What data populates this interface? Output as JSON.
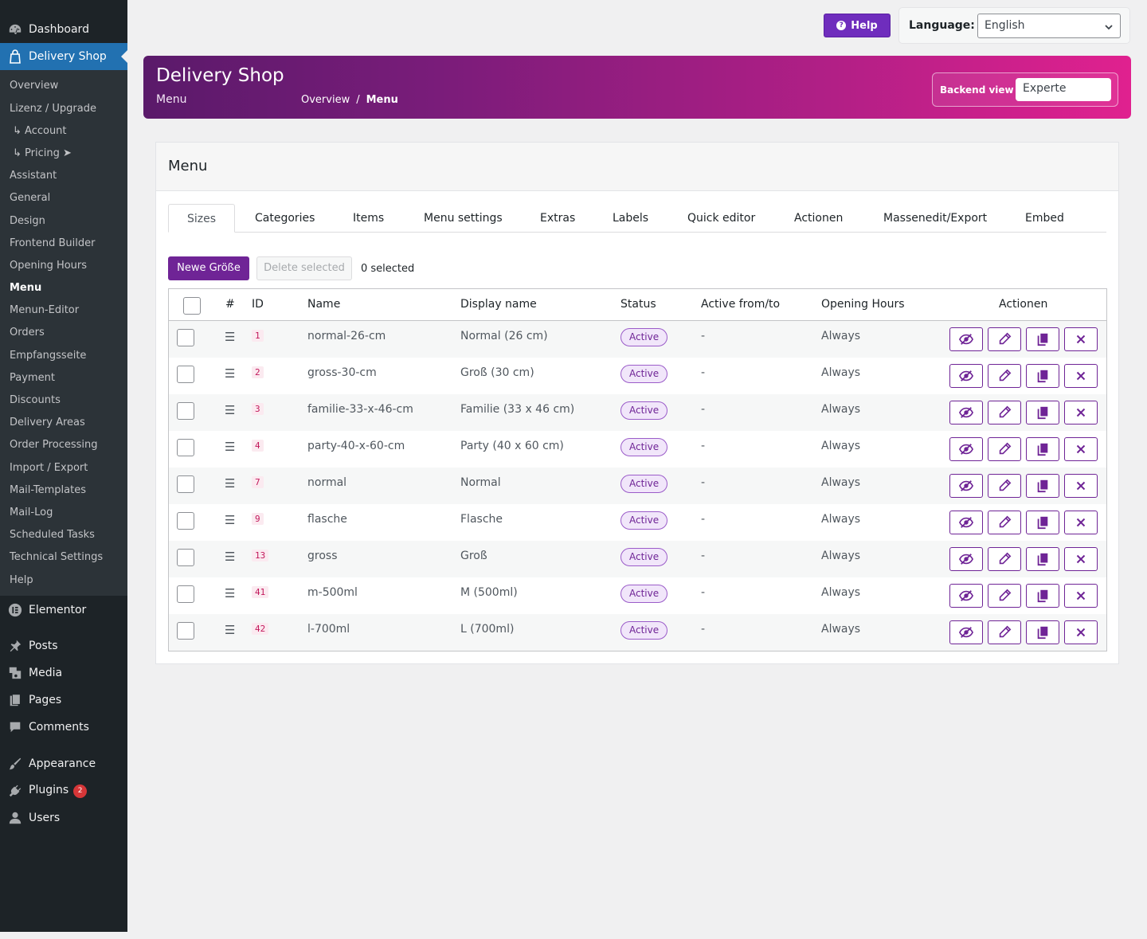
{
  "sidebar": {
    "top": [
      {
        "label": "Dashboard",
        "icon": "dashboard-icon"
      },
      {
        "label": "Delivery Shop",
        "icon": "shopping-bag-icon"
      }
    ],
    "submenu": [
      {
        "label": "Overview"
      },
      {
        "label": "Lizenz / Upgrade"
      },
      {
        "label": "↳ Account"
      },
      {
        "label": "↳ Pricing ➤"
      },
      {
        "label": "Assistant"
      },
      {
        "label": "General"
      },
      {
        "label": "Design"
      },
      {
        "label": "Frontend Builder"
      },
      {
        "label": "Opening Hours"
      },
      {
        "label": "Menu"
      },
      {
        "label": "Menun-Editor"
      },
      {
        "label": "Orders"
      },
      {
        "label": "Empfangsseite"
      },
      {
        "label": "Payment"
      },
      {
        "label": "Discounts"
      },
      {
        "label": "Delivery Areas"
      },
      {
        "label": "Order Processing"
      },
      {
        "label": "Import / Export"
      },
      {
        "label": "Mail-Templates"
      },
      {
        "label": "Mail-Log"
      },
      {
        "label": "Scheduled Tasks"
      },
      {
        "label": "Technical Settings"
      },
      {
        "label": "Help"
      }
    ],
    "bottom": [
      {
        "label": "Elementor",
        "icon": "elementor-icon"
      },
      {
        "label": "Posts",
        "icon": "pin-icon"
      },
      {
        "label": "Media",
        "icon": "media-icon"
      },
      {
        "label": "Pages",
        "icon": "pages-icon"
      },
      {
        "label": "Comments",
        "icon": "comment-icon"
      },
      {
        "label": "Appearance",
        "icon": "brush-icon"
      },
      {
        "label": "Plugins",
        "icon": "plugin-icon",
        "badge": "2"
      },
      {
        "label": "Users",
        "icon": "user-icon"
      }
    ]
  },
  "topbar": {
    "help_label": "Help",
    "language_label": "Language:",
    "language_value": "English"
  },
  "banner": {
    "title": "Delivery Shop",
    "subtitle": "Menu",
    "breadcrumb": [
      "Overview",
      "/",
      "Menu"
    ],
    "backend_label": "Backend view",
    "backend_value": "Experte"
  },
  "card": {
    "title": "Menu",
    "tabs": [
      "Sizes",
      "Categories",
      "Items",
      "Menu settings",
      "Extras",
      "Labels",
      "Quick editor",
      "Actionen",
      "Massenedit/Export",
      "Embed"
    ],
    "new_button": "Newe Größe",
    "delete_button": "Delete selected",
    "selected_count": "0 selected"
  },
  "table": {
    "headers": [
      "#",
      "ID",
      "Name",
      "Display name",
      "Status",
      "Active from/to",
      "Opening Hours",
      "Actionen"
    ],
    "rows": [
      {
        "drag": "☰",
        "id": "1",
        "name": "normal-26-cm",
        "display": "Normal (26 cm)",
        "status": "Active",
        "active": "-",
        "hours": "Always"
      },
      {
        "drag": "☰",
        "id": "2",
        "name": "gross-30-cm",
        "display": "Groß (30 cm)",
        "status": "Active",
        "active": "-",
        "hours": "Always"
      },
      {
        "drag": "☰",
        "id": "3",
        "name": "familie-33-x-46-cm",
        "display": "Familie (33 x 46 cm)",
        "status": "Active",
        "active": "-",
        "hours": "Always"
      },
      {
        "drag": "☰",
        "id": "4",
        "name": "party-40-x-60-cm",
        "display": "Party (40 x 60 cm)",
        "status": "Active",
        "active": "-",
        "hours": "Always"
      },
      {
        "drag": "☰",
        "id": "7",
        "name": "normal",
        "display": "Normal",
        "status": "Active",
        "active": "-",
        "hours": "Always"
      },
      {
        "drag": "☰",
        "id": "9",
        "name": "flasche",
        "display": "Flasche",
        "status": "Active",
        "active": "-",
        "hours": "Always"
      },
      {
        "drag": "☰",
        "id": "13",
        "name": "gross",
        "display": "Groß",
        "status": "Active",
        "active": "-",
        "hours": "Always"
      },
      {
        "drag": "☰",
        "id": "41",
        "name": "m-500ml",
        "display": "M (500ml)",
        "status": "Active",
        "active": "-",
        "hours": "Always"
      },
      {
        "drag": "☰",
        "id": "42",
        "name": "l-700ml",
        "display": "L (700ml)",
        "status": "Active",
        "active": "-",
        "hours": "Always"
      }
    ],
    "row_actions": [
      "hide-icon",
      "edit-icon",
      "duplicate-icon",
      "delete-icon"
    ]
  },
  "colors": {
    "accent": "#6f2496",
    "sidebar_bg": "#1d2327",
    "sidebar_current": "#2271b1",
    "banner_start": "#5a1a6a",
    "banner_end": "#e0218f"
  }
}
